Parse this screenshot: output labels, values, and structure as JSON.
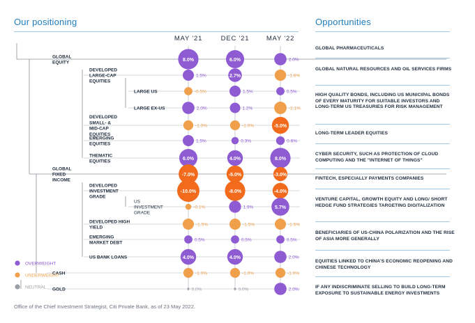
{
  "left_title": "Our positioning",
  "right_title": "Opportunities",
  "footnote": "Office of the Chief Investment Strategist, Citi Private Bank, as of 23 May 2022.",
  "colors": {
    "overweight": "#8e5bd3",
    "underweight": "#f0a04a",
    "strong_underweight": "#f26b1c",
    "neutral": "#9aa0a6",
    "accent": "#1f7dbf"
  },
  "chart_data": {
    "type": "table",
    "columns": [
      "MAY '21",
      "DEC '21",
      "MAY '22"
    ],
    "legend": [
      {
        "key": "overweight",
        "label": "OVERWEIGHT"
      },
      {
        "key": "underweight",
        "label": "UNDERWEIGHT"
      },
      {
        "key": "neutral",
        "label": "NEUTRAL"
      }
    ],
    "rows": [
      {
        "label": "GLOBAL EQUITY",
        "level": 0,
        "values": [
          8.0,
          6.0,
          2.0
        ],
        "labels": [
          "8.0%",
          "6.0%",
          "2.0%"
        ]
      },
      {
        "label": "DEVELOPED LARGE-CAP EQUITIES",
        "level": 1,
        "values": [
          1.5,
          2.7,
          -1.6
        ],
        "labels": [
          "1.5%",
          "2.7%",
          "-1.6%"
        ]
      },
      {
        "label": "LARGE US",
        "level": 2,
        "values": [
          -0.5,
          1.5,
          0.5
        ],
        "labels": [
          "-0.5%",
          "1.5%",
          "0.5%"
        ]
      },
      {
        "label": "LARGE EX-US",
        "level": 2,
        "values": [
          2.0,
          1.2,
          -2.1
        ],
        "labels": [
          "2.0%",
          "1.2%",
          "-2.1%"
        ]
      },
      {
        "label": "DEVELOPED SMALL- & MID-CAP EQUITIES",
        "level": 1,
        "values": [
          -1.0,
          -1.0,
          -5.0
        ],
        "labels": [
          "-1.0%",
          "-1.0%",
          "-5.0%"
        ]
      },
      {
        "label": "EMERGING EQUITIES",
        "level": 1,
        "values": [
          1.5,
          0.3,
          0.6
        ],
        "labels": [
          "1.5%",
          "0.3%",
          "0.6%"
        ]
      },
      {
        "label": "THEMATIC EQUITIES",
        "level": 1,
        "values": [
          6.0,
          4.0,
          8.0
        ],
        "labels": [
          "6.0%",
          "4.0%",
          "8.0%"
        ]
      },
      {
        "label": "GLOBAL FIXED INCOME",
        "level": 0,
        "values": [
          -7.0,
          -5.0,
          -3.0
        ],
        "labels": [
          "-7.0%",
          "-5.0%",
          "-3.0%"
        ]
      },
      {
        "label": "DEVELOPED INVESTMENT GRADE",
        "level": 1,
        "values": [
          -10.0,
          -8.0,
          -4.0
        ],
        "labels": [
          "-10.0%",
          "-8.0%",
          "-4.0%"
        ]
      },
      {
        "label": "US INVESTMENT GRADE",
        "level": 2,
        "values": [
          -0.1,
          1.9,
          5.7
        ],
        "labels": [
          "-0.1%",
          "1.9%",
          "5.7%"
        ]
      },
      {
        "label": "DEVELOPED HIGH YIELD",
        "level": 1,
        "values": [
          -1.5,
          -1.5,
          -1.5
        ],
        "labels": [
          "-1.5%",
          "-1.5%",
          "-1.5%"
        ]
      },
      {
        "label": "EMERGING MARKET DEBT",
        "level": 1,
        "values": [
          0.5,
          0.5,
          0.5
        ],
        "labels": [
          "0.5%",
          "0.5%",
          "0.5%"
        ]
      },
      {
        "label": "US BANK LOANS",
        "level": 1,
        "values": [
          4.0,
          4.0,
          2.0
        ],
        "labels": [
          "4.0%",
          "4.0%",
          "2.0%"
        ]
      },
      {
        "label": "CASH",
        "level": 0,
        "values": [
          -1.0,
          -1.0,
          -1.0
        ],
        "labels": [
          "-1.0%",
          "-1.0%",
          "-1.0%"
        ]
      },
      {
        "label": "GOLD",
        "level": 0,
        "values": [
          0.0,
          0.0,
          2.0
        ],
        "labels": [
          "0.0%",
          "0.0%",
          "2.0%"
        ]
      }
    ]
  },
  "opportunities": [
    "GLOBAL PHARMACEUTICALS",
    "GLOBAL NATURAL RESOURCES AND OIL SERVICES FIRMS",
    "HIGH QUALITY BONDS, INCLUDING US MUNICIPAL BONDS OF EVERY MATURITY FOR SUITABLE INVESTORS AND LONG-TERM US TREASURIES FOR RISK MANAGEMENT",
    "LONG-TERM LEADER EQUITIES",
    "CYBER SECURITY, SUCH AS PROTECTION OF CLOUD COMPUTING AND THE \"INTERNET OF THINGS\"",
    "FINTECH, ESPECIALLY PAYMENTS COMPANIES",
    "VENTURE CAPITAL, GROWTH EQUITY AND LONG/ SHORT HEDGE FUND STRATEGIES TARGETING DIGITALIZATION",
    "BENEFICIARIES OF US-CHINA POLARIZATION AND THE RISE OF ASIA MORE GENERALLY",
    "EQUITIES LINKED TO CHINA'S ECONOMIC REOPENING AND CHINESE TECHNOLOGY",
    "IF ANY INDISCRIMINATE SELLING TO BUILD LONG-TERM EXPOSURE TO SUSTAINABLE ENERGY INVESTMENTS"
  ]
}
